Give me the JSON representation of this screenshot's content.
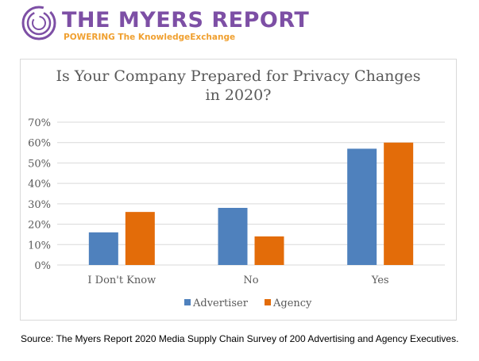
{
  "header": {
    "logo_title": "THE MYERS REPORT",
    "logo_subtitle": "POWERING The KnowledgeExchange",
    "brand_purple": "#7d4fa5",
    "brand_orange": "#f0a030"
  },
  "chart_data": {
    "type": "bar",
    "title_lines": [
      "Is Your Company Prepared for Privacy Changes",
      "in 2020?"
    ],
    "categories": [
      "I Don't Know",
      "No",
      "Yes"
    ],
    "series": [
      {
        "name": "Advertiser",
        "color": "#4f81bd",
        "values": [
          16,
          28,
          57
        ]
      },
      {
        "name": "Agency",
        "color": "#e36c09",
        "values": [
          26,
          14,
          60
        ]
      }
    ],
    "yticks": [
      "0%",
      "10%",
      "20%",
      "30%",
      "40%",
      "50%",
      "60%",
      "70%"
    ],
    "ylim": [
      0,
      70
    ],
    "xlabel": "",
    "ylabel": "",
    "grid": true,
    "legend_position": "bottom"
  },
  "footer": {
    "source": "Source: The Myers Report 2020 Media Supply Chain Survey of 200 Advertising and Agency Executives."
  }
}
